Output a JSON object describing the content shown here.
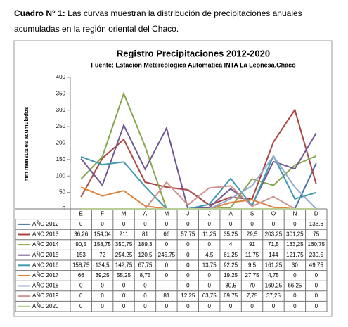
{
  "caption": {
    "label": "Cuadro N° 1:",
    "text": "Las curvas muestran la distribución de precipitaciones anuales acumuladas en la región oriental del Chaco."
  },
  "chart_data": {
    "type": "line",
    "title": "Registro Precipitaciones 2012-2020",
    "subtitle": "Fuente: Estación Metereològica Automatica INTA La Leonesa.Chaco",
    "y_label": "mm mensuales acumulados",
    "categories": [
      "E",
      "F",
      "M",
      "A",
      "M",
      "J",
      "J",
      "A",
      "S",
      "O",
      "N",
      "D"
    ],
    "ylim": [
      0,
      400
    ],
    "yticks": [
      0,
      50,
      100,
      150,
      200,
      250,
      300,
      350,
      400
    ],
    "grid": false,
    "series": [
      {
        "name": "AÑO 2012",
        "color": "#4572a7",
        "values": [
          0,
          0,
          0,
          0,
          0,
          0,
          0,
          0,
          0,
          0,
          0,
          138.6
        ],
        "value_labels": [
          "0",
          "0",
          "0",
          "0",
          "0",
          "0",
          "0",
          "0",
          "0",
          "0",
          "0",
          "138,6"
        ]
      },
      {
        "name": "AÑO 2013",
        "color": "#aa4643",
        "values": [
          36.26,
          154.04,
          211,
          81,
          66,
          57.75,
          11.25,
          35.25,
          29.5,
          203.25,
          301.25,
          75
        ],
        "value_labels": [
          "36,26",
          "154,04",
          "211",
          "81",
          "66",
          "57,75",
          "11,25",
          "35,25",
          "29,5",
          "203,25",
          "301,25",
          "75"
        ]
      },
      {
        "name": "AÑO 2014",
        "color": "#89a54e",
        "values": [
          90.5,
          158.75,
          350.75,
          189.3,
          0,
          0,
          0,
          4,
          91,
          71.5,
          133.25,
          160.75
        ],
        "value_labels": [
          "90,5",
          "158,75",
          "350,75",
          "189,3",
          "0",
          "0",
          "0",
          "4",
          "91",
          "71,5",
          "133,25",
          "160,75"
        ]
      },
      {
        "name": "AÑO 2015",
        "color": "#71588f",
        "values": [
          153,
          72,
          254.25,
          120.5,
          245.75,
          0,
          4.5,
          61.25,
          11.75,
          144,
          121.75,
          230.5
        ],
        "value_labels": [
          "153",
          "72",
          "254,25",
          "120,5",
          "245,75",
          "0",
          "4,5",
          "61,25",
          "11,75",
          "144",
          "121,75",
          "230,5"
        ]
      },
      {
        "name": "AÑO 2016",
        "color": "#4198af",
        "values": [
          158.75,
          134.5,
          142.75,
          67.75,
          0,
          0,
          13.75,
          92.25,
          9.5,
          161.25,
          30,
          49.75
        ],
        "value_labels": [
          "158,75",
          "134,5",
          "142,75",
          "67,75",
          "0",
          "0",
          "13,75",
          "92,25",
          "9,5",
          "161,25",
          "30",
          "49,75"
        ]
      },
      {
        "name": "AÑO 2017",
        "color": "#db843d",
        "values": [
          66,
          39.25,
          55.25,
          8.75,
          0,
          0,
          0,
          19.25,
          27.75,
          4.75,
          0,
          0
        ],
        "value_labels": [
          "66",
          "39,25",
          "55,25",
          "8,75",
          "0",
          "0",
          "0",
          "19,25",
          "27,75",
          "4,75",
          "0",
          "0"
        ]
      },
      {
        "name": "AÑO 2018",
        "color": "#93a9cf",
        "values": [
          0,
          0,
          0,
          0,
          null,
          0,
          0,
          30.5,
          70,
          160.25,
          66.25,
          0
        ],
        "value_labels": [
          "0",
          "0",
          "0",
          "0",
          null,
          "0",
          "0",
          "30,5",
          "70",
          "160,25",
          "66,25",
          "0"
        ]
      },
      {
        "name": "AÑO 2019",
        "color": "#d19392",
        "values": [
          0,
          0,
          0,
          0,
          81,
          12.25,
          63.75,
          69.75,
          7.75,
          37.25,
          0,
          0
        ],
        "value_labels": [
          "0",
          "0",
          "0",
          "0",
          "81",
          "12,25",
          "63,75",
          "69,75",
          "7,75",
          "37,25",
          "0",
          "0"
        ]
      },
      {
        "name": "AÑO 2020",
        "color": "#b9cd96",
        "values": [
          0,
          0,
          0,
          0,
          0,
          0,
          0,
          0,
          0,
          0,
          0,
          0
        ],
        "value_labels": [
          "0",
          "0",
          "0",
          "0",
          "0",
          "0",
          "0",
          "0",
          "0",
          "0",
          "0",
          "0"
        ]
      }
    ]
  }
}
